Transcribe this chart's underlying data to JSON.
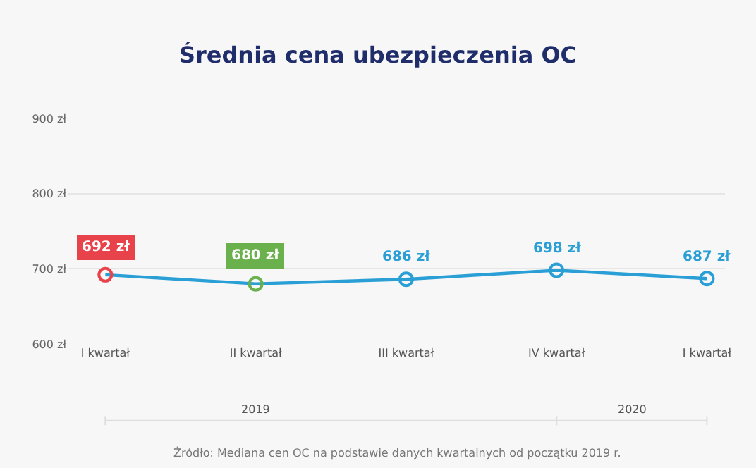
{
  "chart_data": {
    "type": "line",
    "title": "Średnia cena ubezpieczenia OC",
    "categories": [
      "I kwartał",
      "II kwartał",
      "III kwartał",
      "IV kwartał",
      "I kwartał"
    ],
    "series": [
      {
        "color": "#2a9fd6",
        "colors": [
          "#e8434a",
          "#6ab04c",
          "#2a9fd6",
          "#2a9fd6",
          "#2a9fd6"
        ],
        "values": [
          692,
          680,
          686,
          698,
          687
        ],
        "value_labels": [
          "692 zł",
          "680 zł",
          "686 zł",
          "698 zł",
          "687 zł"
        ]
      }
    ],
    "ylim": [
      600,
      900
    ],
    "yticks": [
      {
        "value": 600,
        "label": "600 zł"
      },
      {
        "value": 700,
        "label": "700 zł"
      },
      {
        "value": 800,
        "label": "800 zł"
      },
      {
        "value": 900,
        "label": "900 zł"
      }
    ],
    "grid": "y",
    "marker": "circle",
    "line_style": "solid",
    "annotations": [
      "2019",
      "2020",
      "Źródło: Mediana cen OC na podstawie danych kwartalnych od początku 2019 r."
    ]
  }
}
